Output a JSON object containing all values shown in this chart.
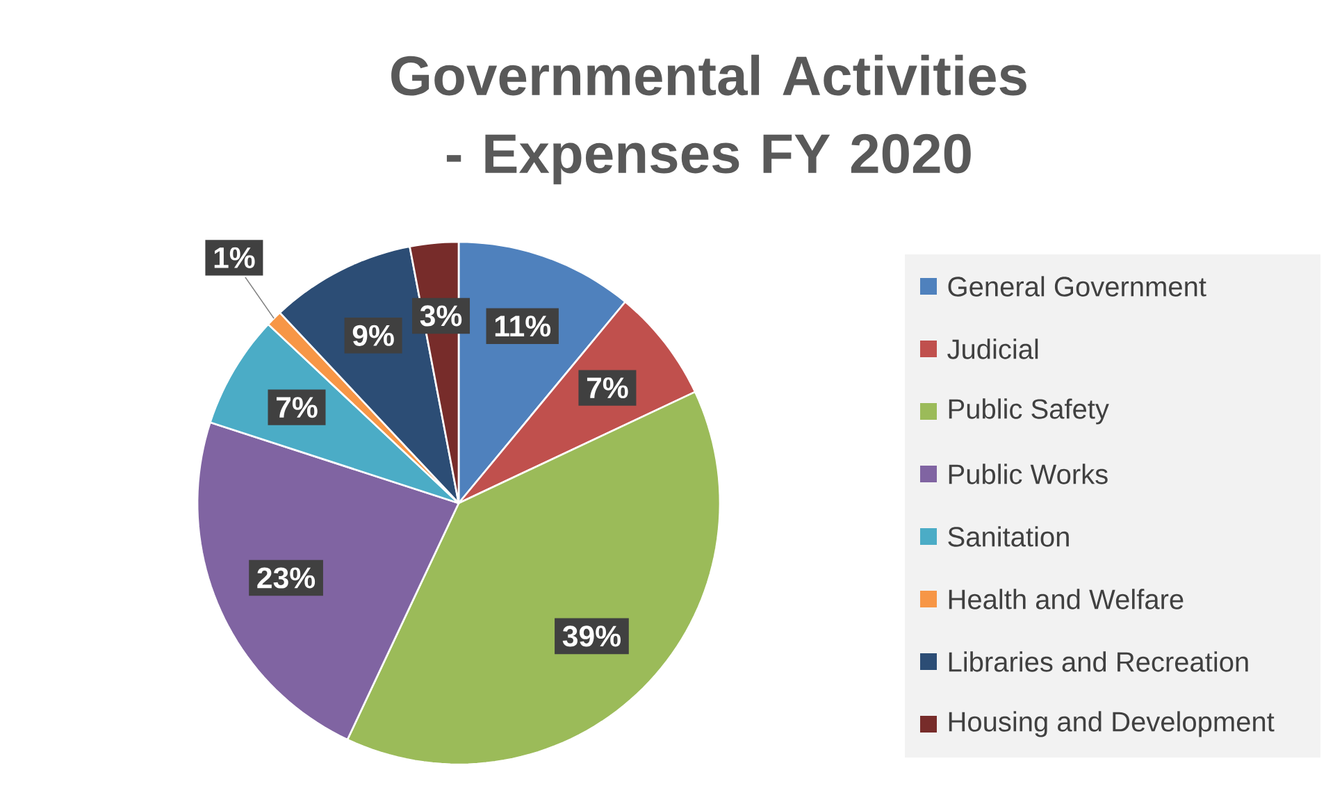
{
  "chart_data": {
    "type": "pie",
    "title": "Governmental Activities - Expenses FY 2020",
    "categories": [
      "General Government",
      "Judicial",
      "Public Safety",
      "Public Works",
      "Sanitation",
      "Health and Welfare",
      "Libraries and Recreation",
      "Housing and Development"
    ],
    "values": [
      11,
      7,
      39,
      23,
      7,
      1,
      9,
      3
    ],
    "value_labels": [
      "11%",
      "7%",
      "39%",
      "23%",
      "7%",
      "1%",
      "9%",
      "3%"
    ],
    "colors": [
      "#4f81bd",
      "#c0504d",
      "#9bbb59",
      "#8064a2",
      "#4bacc6",
      "#f79646",
      "#2c4d75",
      "#772c2a"
    ],
    "legend": "right"
  }
}
